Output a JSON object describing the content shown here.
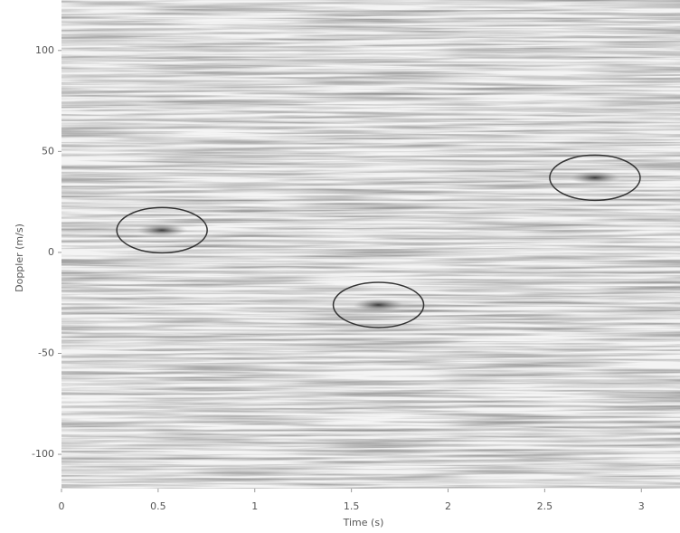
{
  "chart_data": {
    "type": "detections",
    "xlabel": "Time (s)",
    "ylabel": "Doppler (m/s)",
    "x": [
      0.52,
      1.64,
      2.76
    ],
    "values": [
      11,
      -26,
      37
    ],
    "xlim": [
      0,
      3.2
    ],
    "ylim": [
      -117,
      125
    ],
    "xticks": [
      0,
      0.5,
      1,
      1.5,
      2,
      2.5,
      3
    ],
    "yticks": [
      100,
      50,
      0,
      -50,
      -100
    ],
    "color": "#333333"
  }
}
